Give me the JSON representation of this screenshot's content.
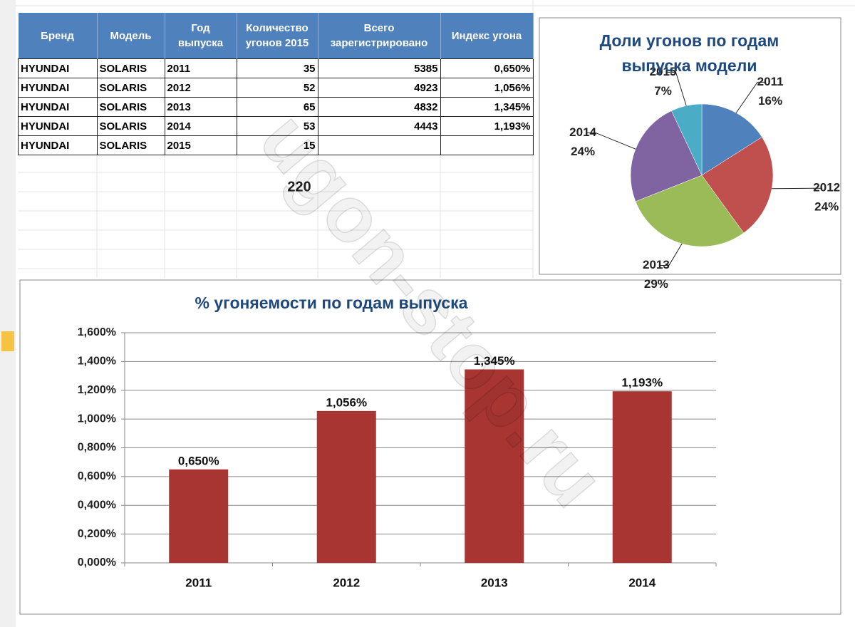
{
  "table": {
    "columns": [
      "Бренд",
      "Модель",
      "Год выпуска",
      "Количество угонов 2015",
      "Всего зарегистрировано",
      "Индекс угона"
    ],
    "rows": [
      [
        "HYUNDAI",
        "SOLARIS",
        "2011",
        "35",
        "5385",
        "0,650%"
      ],
      [
        "HYUNDAI",
        "SOLARIS",
        "2012",
        "52",
        "4923",
        "1,056%"
      ],
      [
        "HYUNDAI",
        "SOLARIS",
        "2013",
        "65",
        "4832",
        "1,345%"
      ],
      [
        "HYUNDAI",
        "SOLARIS",
        "2014",
        "53",
        "4443",
        "1,193%"
      ],
      [
        "HYUNDAI",
        "SOLARIS",
        "2015",
        "15"
      ]
    ],
    "total": "220"
  },
  "chart_data": [
    {
      "type": "pie",
      "title": "Доли угонов  по годам выпуска  модели",
      "categories": [
        "2011",
        "2012",
        "2013",
        "2014",
        "2015"
      ],
      "values": [
        16,
        24,
        29,
        24,
        7
      ],
      "value_labels": [
        "16%",
        "24%",
        "29%",
        "24%",
        "7%"
      ],
      "colors": [
        "#4f81bd",
        "#c0504d",
        "#9bbb59",
        "#8064a2",
        "#4bacc6"
      ]
    },
    {
      "type": "bar",
      "title": "% угоняемости  по годам  выпуска",
      "categories": [
        "2011",
        "2012",
        "2013",
        "2014"
      ],
      "values": [
        0.65,
        1.056,
        1.345,
        1.193
      ],
      "value_labels": [
        "0,650%",
        "1,056%",
        "1,345%",
        "1,193%"
      ],
      "color": "#a93533",
      "ylim": [
        0,
        1.6
      ],
      "yticks": [
        {
          "value": 0,
          "label": "0,000%"
        },
        {
          "value": 0.2,
          "label": "0,200%"
        },
        {
          "value": 0.4,
          "label": "0,400%"
        },
        {
          "value": 0.6,
          "label": "0,600%"
        },
        {
          "value": 0.8,
          "label": "0,800%"
        },
        {
          "value": 1.0,
          "label": "1,000%"
        },
        {
          "value": 1.2,
          "label": "1,200%"
        },
        {
          "value": 1.4,
          "label": "1,400%"
        },
        {
          "value": 1.6,
          "label": "1,600%"
        }
      ],
      "grid": true
    }
  ],
  "watermark": "ugon-stop.ru"
}
